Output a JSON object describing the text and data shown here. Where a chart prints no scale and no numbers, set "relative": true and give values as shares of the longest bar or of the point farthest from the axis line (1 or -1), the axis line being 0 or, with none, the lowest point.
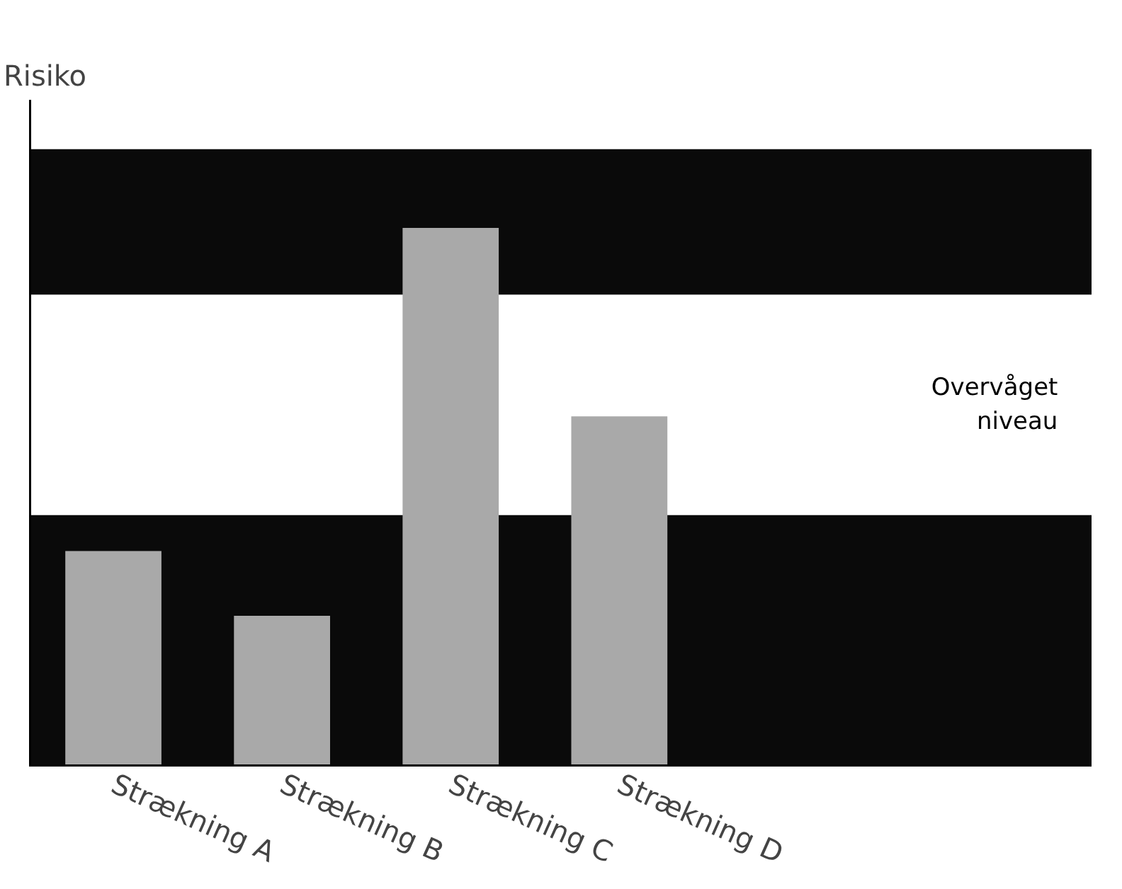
{
  "chart_data": {
    "type": "bar",
    "relative": true,
    "ylabel": "Risiko",
    "categories": [
      "Strækning A",
      "Strækning B",
      "Strækning C",
      "Strækning D"
    ],
    "values": [
      0.4,
      0.28,
      1,
      0.65
    ],
    "color": "#a9a9a9",
    "grid": false,
    "bands": [
      {
        "axis": "y",
        "from": 0,
        "to": 0.467,
        "color": "#0a0a0a"
      },
      {
        "axis": "y",
        "from": 0.467,
        "to": 0.876,
        "color": "#ffffff",
        "label": "Overvåget niveau"
      },
      {
        "axis": "y",
        "from": 0.876,
        "to": 1.146,
        "color": "#0a0a0a"
      }
    ]
  }
}
